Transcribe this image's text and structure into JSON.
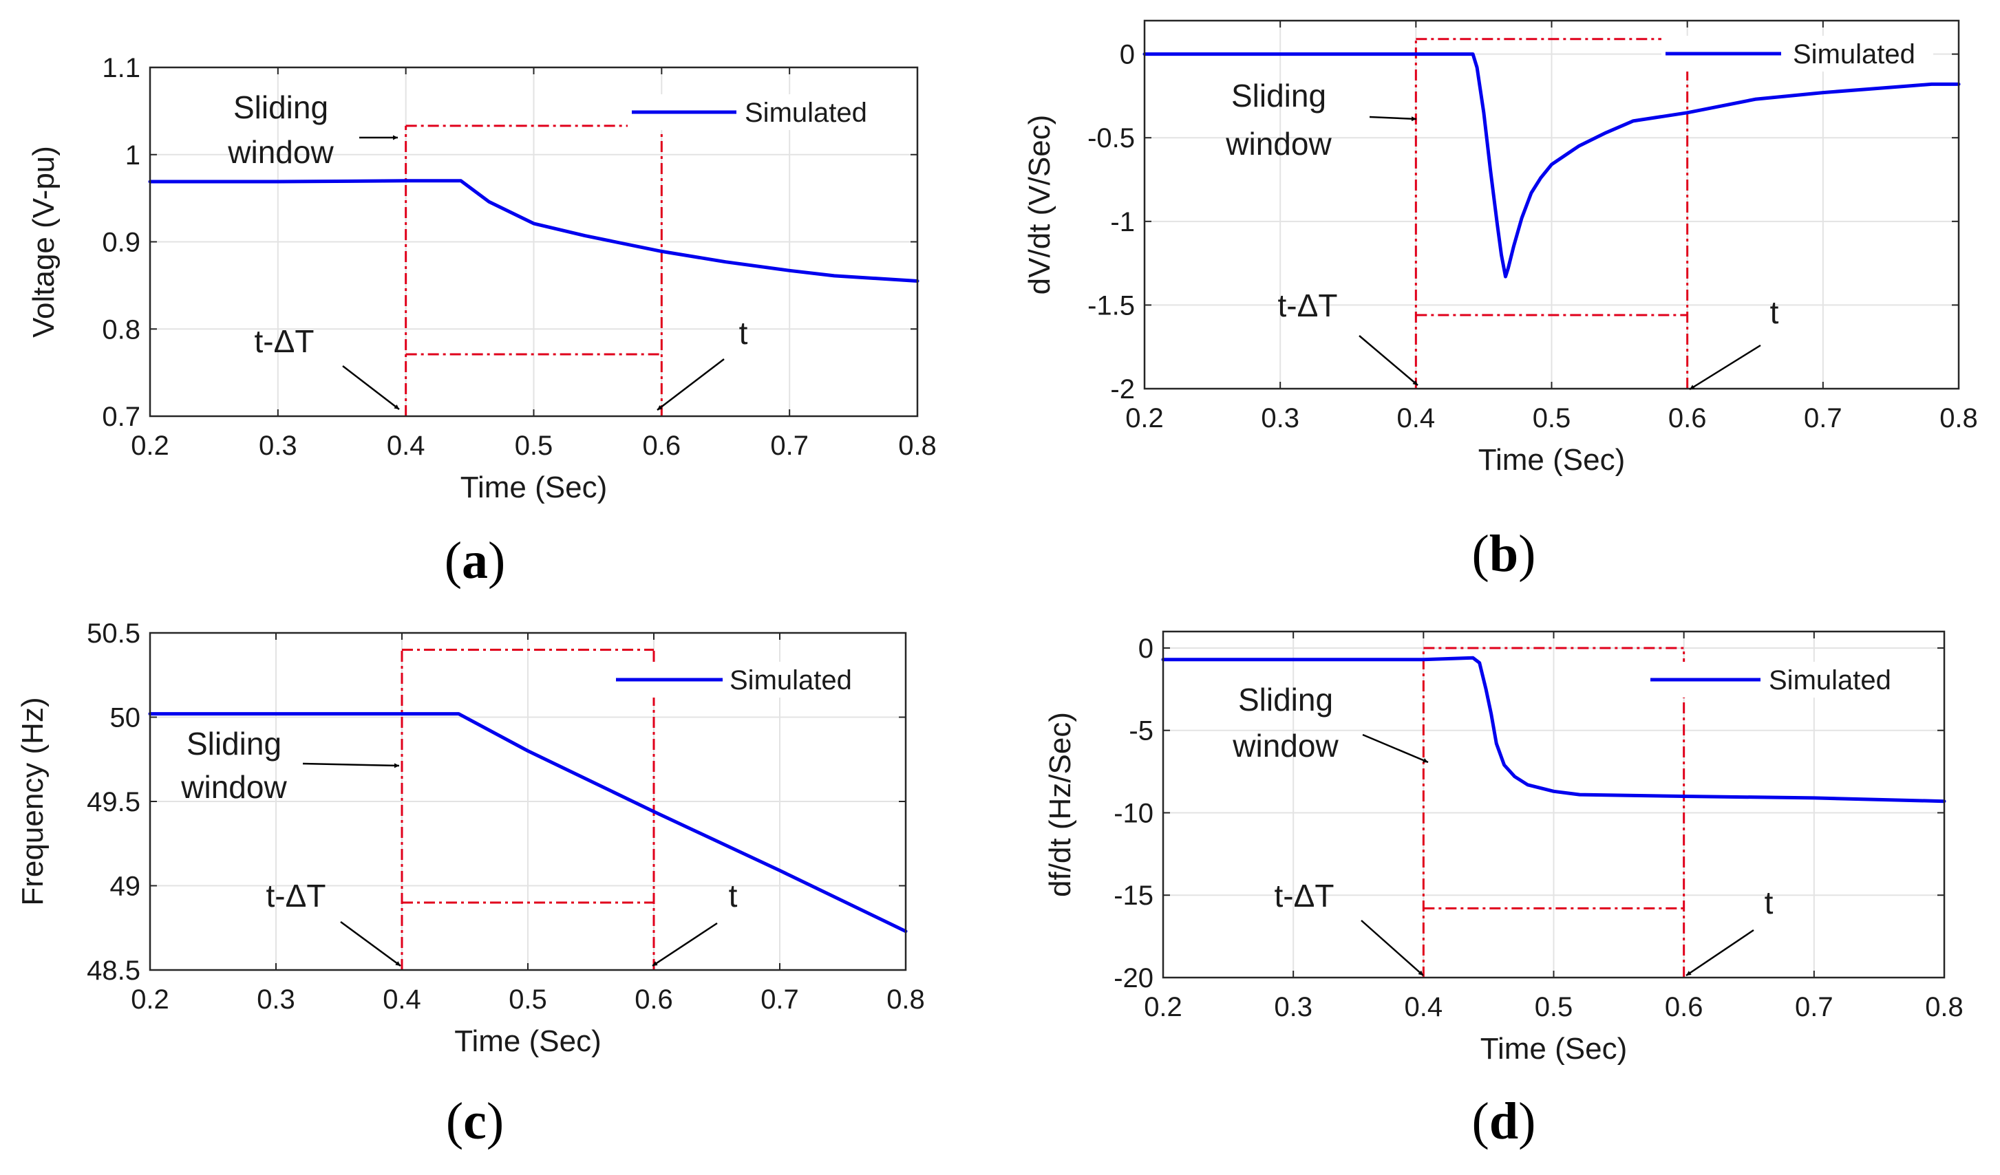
{
  "chart_data": [
    {
      "type": "line",
      "caption": "(a)",
      "caption_letter": "a",
      "xlabel": "Time (Sec)",
      "ylabel": "Voltage (V-pu)",
      "xlim": [
        0.2,
        0.8
      ],
      "ylim": [
        0.7,
        1.1
      ],
      "x_ticks": [
        0.2,
        0.3,
        0.4,
        0.5,
        0.6,
        0.7,
        0.8
      ],
      "x_tick_labels": [
        "0.2",
        "0.3",
        "0.4",
        "0.5",
        "0.6",
        "0.7",
        "0.8"
      ],
      "y_ticks": [
        0.7,
        0.8,
        0.9,
        1.0,
        1.1
      ],
      "y_tick_labels": [
        "0.7",
        "0.8",
        "0.9",
        "1",
        "1.1"
      ],
      "grid": true,
      "legend": {
        "label": "Simulated",
        "placement": "top-right"
      },
      "series": [
        {
          "name": "Simulated",
          "color": "#0000ee",
          "x": [
            0.2,
            0.3,
            0.4,
            0.443,
            0.465,
            0.5,
            0.54,
            0.6,
            0.65,
            0.7,
            0.735,
            0.8
          ],
          "y": [
            0.969,
            0.969,
            0.97,
            0.97,
            0.946,
            0.921,
            0.907,
            0.889,
            0.877,
            0.867,
            0.861,
            0.855
          ]
        }
      ],
      "window": {
        "color": "#e0001b",
        "x_start": 0.4,
        "x_end": 0.6,
        "y_top": 1.033,
        "y_mid": 0.771,
        "y_bottom": 0.7
      },
      "annotations": {
        "sliding_window": [
          "Sliding",
          "window"
        ],
        "start_label": "t-ΔT",
        "end_label": "t"
      }
    },
    {
      "type": "line",
      "caption": "(b)",
      "caption_letter": "b",
      "xlabel": "Time (Sec)",
      "ylabel": "dV/dt  (V/Sec)",
      "xlim": [
        0.2,
        0.8
      ],
      "ylim": [
        -2,
        0.2
      ],
      "x_ticks": [
        0.2,
        0.3,
        0.4,
        0.5,
        0.6,
        0.7,
        0.8
      ],
      "x_tick_labels": [
        "0.2",
        "0.3",
        "0.4",
        "0.5",
        "0.6",
        "0.7",
        "0.8"
      ],
      "y_ticks": [
        -2,
        -1.5,
        -1,
        -0.5,
        0
      ],
      "y_tick_labels": [
        "-2",
        "-1.5",
        "-1",
        "-0.5",
        "0"
      ],
      "grid": true,
      "legend": {
        "label": "Simulated",
        "placement": "top-right"
      },
      "series": [
        {
          "name": "Simulated",
          "color": "#0000ee",
          "x": [
            0.2,
            0.3,
            0.4,
            0.442,
            0.445,
            0.45,
            0.455,
            0.46,
            0.463,
            0.466,
            0.468,
            0.472,
            0.478,
            0.485,
            0.492,
            0.5,
            0.52,
            0.54,
            0.56,
            0.6,
            0.65,
            0.7,
            0.78,
            0.8
          ],
          "y": [
            0,
            0,
            0,
            0,
            -0.08,
            -0.35,
            -0.7,
            -1.02,
            -1.2,
            -1.33,
            -1.28,
            -1.15,
            -0.98,
            -0.83,
            -0.74,
            -0.66,
            -0.55,
            -0.47,
            -0.4,
            -0.35,
            -0.27,
            -0.23,
            -0.18,
            -0.18
          ]
        }
      ],
      "window": {
        "color": "#e0001b",
        "x_start": 0.4,
        "x_end": 0.6,
        "y_top": 0.09,
        "y_mid": -1.56,
        "y_bottom": -2
      },
      "annotations": {
        "sliding_window": [
          "Sliding",
          "window"
        ],
        "start_label": "t-ΔT",
        "end_label": "t"
      }
    },
    {
      "type": "line",
      "caption": "(c)",
      "caption_letter": "c",
      "xlabel": "Time (Sec)",
      "ylabel": "Frequency (Hz)",
      "xlim": [
        0.2,
        0.8
      ],
      "ylim": [
        48.5,
        50.5
      ],
      "x_ticks": [
        0.2,
        0.3,
        0.4,
        0.5,
        0.6,
        0.7,
        0.8
      ],
      "x_tick_labels": [
        "0.2",
        "0.3",
        "0.4",
        "0.5",
        "0.6",
        "0.7",
        "0.8"
      ],
      "y_ticks": [
        48.5,
        49,
        49.5,
        50,
        50.5
      ],
      "y_tick_labels": [
        "48.5",
        "49",
        "49.5",
        "50",
        "50.5"
      ],
      "grid": true,
      "legend": {
        "label": "Simulated",
        "placement": "top-right"
      },
      "series": [
        {
          "name": "Simulated",
          "color": "#0000ee",
          "x": [
            0.2,
            0.3,
            0.4,
            0.445,
            0.5,
            0.6,
            0.7,
            0.8
          ],
          "y": [
            50.02,
            50.02,
            50.02,
            50.02,
            49.8,
            49.44,
            49.09,
            48.73
          ]
        }
      ],
      "window": {
        "color": "#e0001b",
        "x_start": 0.4,
        "x_end": 0.6,
        "y_top": 50.4,
        "y_mid": 48.9,
        "y_bottom": 48.5
      },
      "annotations": {
        "sliding_window": [
          "Sliding",
          "window"
        ],
        "start_label": "t-ΔT",
        "end_label": "t"
      }
    },
    {
      "type": "line",
      "caption": "(d)",
      "caption_letter": "d",
      "xlabel": "Time (Sec)",
      "ylabel": "df/dt (Hz/Sec)",
      "xlim": [
        0.2,
        0.8
      ],
      "ylim": [
        -20,
        1
      ],
      "x_ticks": [
        0.2,
        0.3,
        0.4,
        0.5,
        0.6,
        0.7,
        0.8
      ],
      "x_tick_labels": [
        "0.2",
        "0.3",
        "0.4",
        "0.5",
        "0.6",
        "0.7",
        "0.8"
      ],
      "y_ticks": [
        -20,
        -15,
        -10,
        -5,
        0
      ],
      "y_tick_labels": [
        "-20",
        "-15",
        "-10",
        "-5",
        "0"
      ],
      "grid": true,
      "legend": {
        "label": "Simulated",
        "placement": "top-right"
      },
      "series": [
        {
          "name": "Simulated",
          "color": "#0000ee",
          "x": [
            0.2,
            0.3,
            0.4,
            0.438,
            0.443,
            0.448,
            0.452,
            0.456,
            0.462,
            0.47,
            0.48,
            0.5,
            0.52,
            0.6,
            0.7,
            0.8
          ],
          "y": [
            -0.7,
            -0.7,
            -0.7,
            -0.6,
            -0.9,
            -2.5,
            -4.0,
            -5.8,
            -7.1,
            -7.8,
            -8.3,
            -8.7,
            -8.9,
            -9.0,
            -9.1,
            -9.3
          ]
        }
      ],
      "window": {
        "color": "#e0001b",
        "x_start": 0.4,
        "x_end": 0.6,
        "y_top": 0,
        "y_mid": -15.8,
        "y_bottom": -20
      },
      "annotations": {
        "sliding_window": [
          "Sliding",
          "window"
        ],
        "start_label": "t-ΔT",
        "end_label": "t"
      }
    }
  ]
}
